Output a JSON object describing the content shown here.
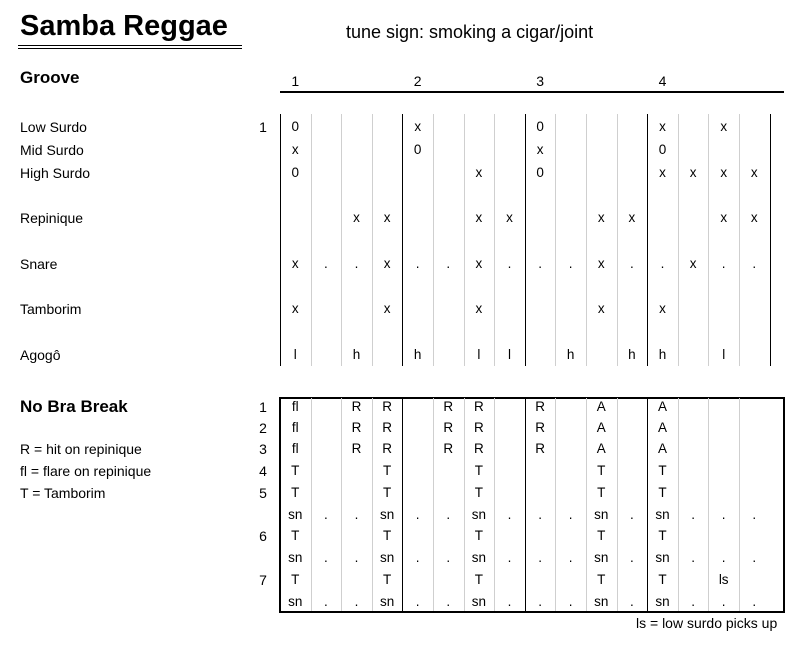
{
  "title": "Samba Reggae",
  "tune_sign": "tune sign: smoking a cigar/joint",
  "groove": {
    "heading": "Groove",
    "beats": [
      "1",
      "2",
      "3",
      "4"
    ],
    "row_number": "1",
    "rows": [
      {
        "instrument": "Low Surdo",
        "cells": [
          "0",
          "",
          "",
          "",
          "x",
          "",
          "",
          "",
          "0",
          "",
          "",
          "",
          "x",
          "",
          "x",
          ""
        ]
      },
      {
        "instrument": "Mid Surdo",
        "cells": [
          "x",
          "",
          "",
          "",
          "0",
          "",
          "",
          "",
          "x",
          "",
          "",
          "",
          "0",
          "",
          "",
          ""
        ]
      },
      {
        "instrument": "High Surdo",
        "cells": [
          "0",
          "",
          "",
          "",
          "",
          "",
          "x",
          "",
          "0",
          "",
          "",
          "",
          "x",
          "x",
          "x",
          "x"
        ]
      },
      {
        "instrument": "Repinique",
        "cells": [
          "",
          "",
          "x",
          "x",
          "",
          "",
          "x",
          "x",
          "",
          "",
          "x",
          "x",
          "",
          "",
          "x",
          "x"
        ]
      },
      {
        "instrument": "Snare",
        "cells": [
          "x",
          ".",
          ".",
          "x",
          ".",
          ".",
          "x",
          ".",
          ".",
          ".",
          "x",
          ".",
          ".",
          "x",
          ".",
          "."
        ]
      },
      {
        "instrument": "Tamborim",
        "cells": [
          "x",
          "",
          "",
          "x",
          "",
          "",
          "x",
          "",
          "",
          "",
          "x",
          "",
          "x",
          "",
          "",
          ""
        ]
      },
      {
        "instrument": "Agogô",
        "cells": [
          "l",
          "",
          "h",
          "",
          "h",
          "",
          "l",
          "l",
          "",
          "h",
          "",
          "h",
          "h",
          "",
          "l",
          ""
        ]
      }
    ]
  },
  "break": {
    "heading": "No Bra Break",
    "legend": [
      "R = hit on repinique",
      "fl = flare on repinique",
      "T = Tamborim"
    ],
    "rows": [
      {
        "num": "1",
        "cells": [
          "fl",
          "",
          "R",
          "R",
          "",
          "R",
          "R",
          "",
          "R",
          "",
          "A",
          "",
          "A",
          "",
          "",
          ""
        ]
      },
      {
        "num": "2",
        "cells": [
          "fl",
          "",
          "R",
          "R",
          "",
          "R",
          "R",
          "",
          "R",
          "",
          "A",
          "",
          "A",
          "",
          "",
          ""
        ]
      },
      {
        "num": "3",
        "cells": [
          "fl",
          "",
          "R",
          "R",
          "",
          "R",
          "R",
          "",
          "R",
          "",
          "A",
          "",
          "A",
          "",
          "",
          ""
        ]
      },
      {
        "num": "4",
        "cells": [
          "T",
          "",
          "",
          "T",
          "",
          "",
          "T",
          "",
          "",
          "",
          "T",
          "",
          "T",
          "",
          "",
          ""
        ]
      },
      {
        "num": "5",
        "cells": [
          "T",
          "",
          "",
          "T",
          "",
          "",
          "T",
          "",
          "",
          "",
          "T",
          "",
          "T",
          "",
          "",
          ""
        ]
      },
      {
        "num": "",
        "cells": [
          "sn",
          ".",
          ".",
          "sn",
          ".",
          ".",
          "sn",
          ".",
          ".",
          ".",
          "sn",
          ".",
          "sn",
          ".",
          ".",
          "."
        ]
      },
      {
        "num": "6",
        "cells": [
          "T",
          "",
          "",
          "T",
          "",
          "",
          "T",
          "",
          "",
          "",
          "T",
          "",
          "T",
          "",
          "",
          ""
        ]
      },
      {
        "num": "",
        "cells": [
          "sn",
          ".",
          ".",
          "sn",
          ".",
          ".",
          "sn",
          ".",
          ".",
          ".",
          "sn",
          ".",
          "sn",
          ".",
          ".",
          "."
        ]
      },
      {
        "num": "7",
        "cells": [
          "T",
          "",
          "",
          "T",
          "",
          "",
          "T",
          "",
          "",
          "",
          "T",
          "",
          "T",
          "",
          "ls",
          ""
        ]
      },
      {
        "num": "",
        "cells": [
          "sn",
          ".",
          ".",
          "sn",
          ".",
          ".",
          "sn",
          ".",
          ".",
          ".",
          "sn",
          ".",
          "sn",
          ".",
          ".",
          "."
        ]
      }
    ],
    "footnote": "ls = low surdo picks up"
  }
}
